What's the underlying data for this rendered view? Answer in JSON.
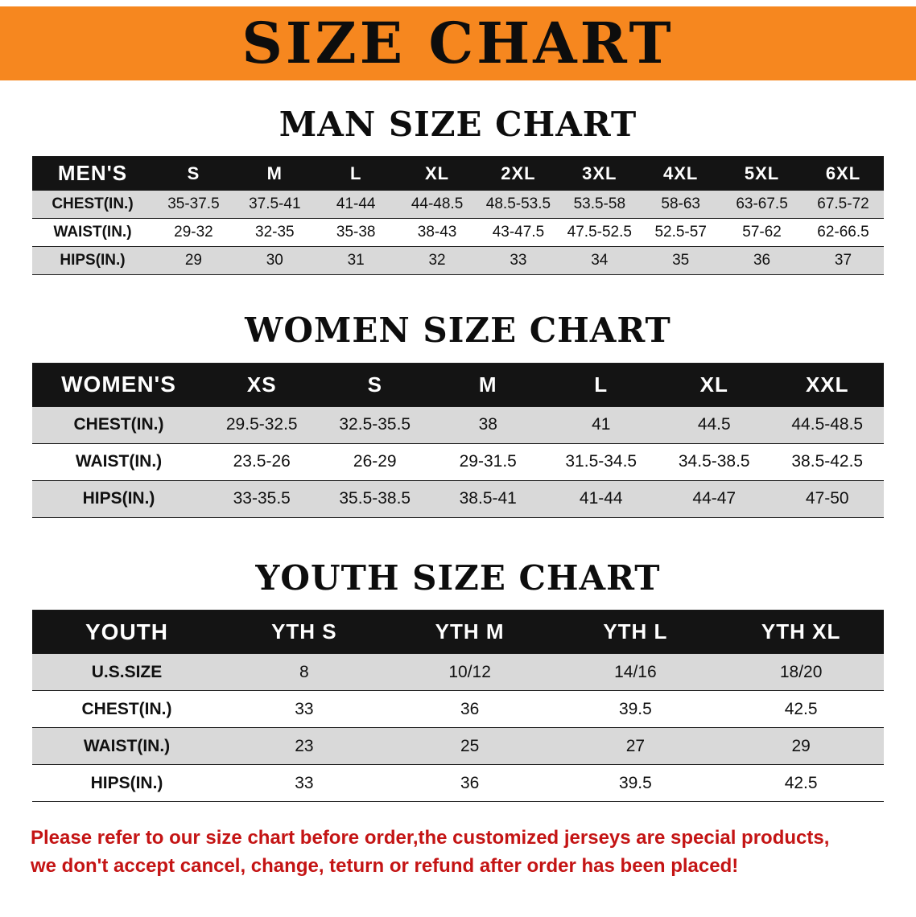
{
  "banner": {
    "title": "SIZE CHART"
  },
  "colors": {
    "banner_bg": "#f6871f",
    "table_header_bg": "#141414",
    "row_alt_gray": "#d9d9d9",
    "note_red": "#c41414"
  },
  "sections": {
    "men": {
      "heading": "MAN SIZE CHART",
      "table": {
        "header": {
          "label": "MEN'S",
          "sizes": [
            "S",
            "M",
            "L",
            "XL",
            "2XL",
            "3XL",
            "4XL",
            "5XL",
            "6XL"
          ]
        },
        "rows": [
          {
            "label": "CHEST(IN.)",
            "values": [
              "35-37.5",
              "37.5-41",
              "41-44",
              "44-48.5",
              "48.5-53.5",
              "53.5-58",
              "58-63",
              "63-67.5",
              "67.5-72"
            ]
          },
          {
            "label": "WAIST(IN.)",
            "values": [
              "29-32",
              "32-35",
              "35-38",
              "38-43",
              "43-47.5",
              "47.5-52.5",
              "52.5-57",
              "57-62",
              "62-66.5"
            ]
          },
          {
            "label": "HIPS(IN.)",
            "values": [
              "29",
              "30",
              "31",
              "32",
              "33",
              "34",
              "35",
              "36",
              "37"
            ]
          }
        ]
      }
    },
    "women": {
      "heading": "WOMEN SIZE CHART",
      "table": {
        "header": {
          "label": "WOMEN'S",
          "sizes": [
            "XS",
            "S",
            "M",
            "L",
            "XL",
            "XXL"
          ]
        },
        "rows": [
          {
            "label": "CHEST(IN.)",
            "values": [
              "29.5-32.5",
              "32.5-35.5",
              "38",
              "41",
              "44.5",
              "44.5-48.5"
            ]
          },
          {
            "label": "WAIST(IN.)",
            "values": [
              "23.5-26",
              "26-29",
              "29-31.5",
              "31.5-34.5",
              "34.5-38.5",
              "38.5-42.5"
            ]
          },
          {
            "label": "HIPS(IN.)",
            "values": [
              "33-35.5",
              "35.5-38.5",
              "38.5-41",
              "41-44",
              "44-47",
              "47-50"
            ]
          }
        ]
      }
    },
    "youth": {
      "heading": "YOUTH SIZE CHART",
      "table": {
        "header": {
          "label": "YOUTH",
          "sizes": [
            "YTH S",
            "YTH M",
            "YTH L",
            "YTH XL"
          ]
        },
        "rows": [
          {
            "label": "U.S.SIZE",
            "values": [
              "8",
              "10/12",
              "14/16",
              "18/20"
            ]
          },
          {
            "label": "CHEST(IN.)",
            "values": [
              "33",
              "36",
              "39.5",
              "42.5"
            ]
          },
          {
            "label": "WAIST(IN.)",
            "values": [
              "23",
              "25",
              "27",
              "29"
            ]
          },
          {
            "label": "HIPS(IN.)",
            "values": [
              "33",
              "36",
              "39.5",
              "42.5"
            ]
          }
        ]
      }
    }
  },
  "footer_note": {
    "line1": "Please refer to our size chart before order,the customized jerseys are special products,",
    "line2": "we don't accept cancel, change, teturn or refund after order has been placed!"
  }
}
